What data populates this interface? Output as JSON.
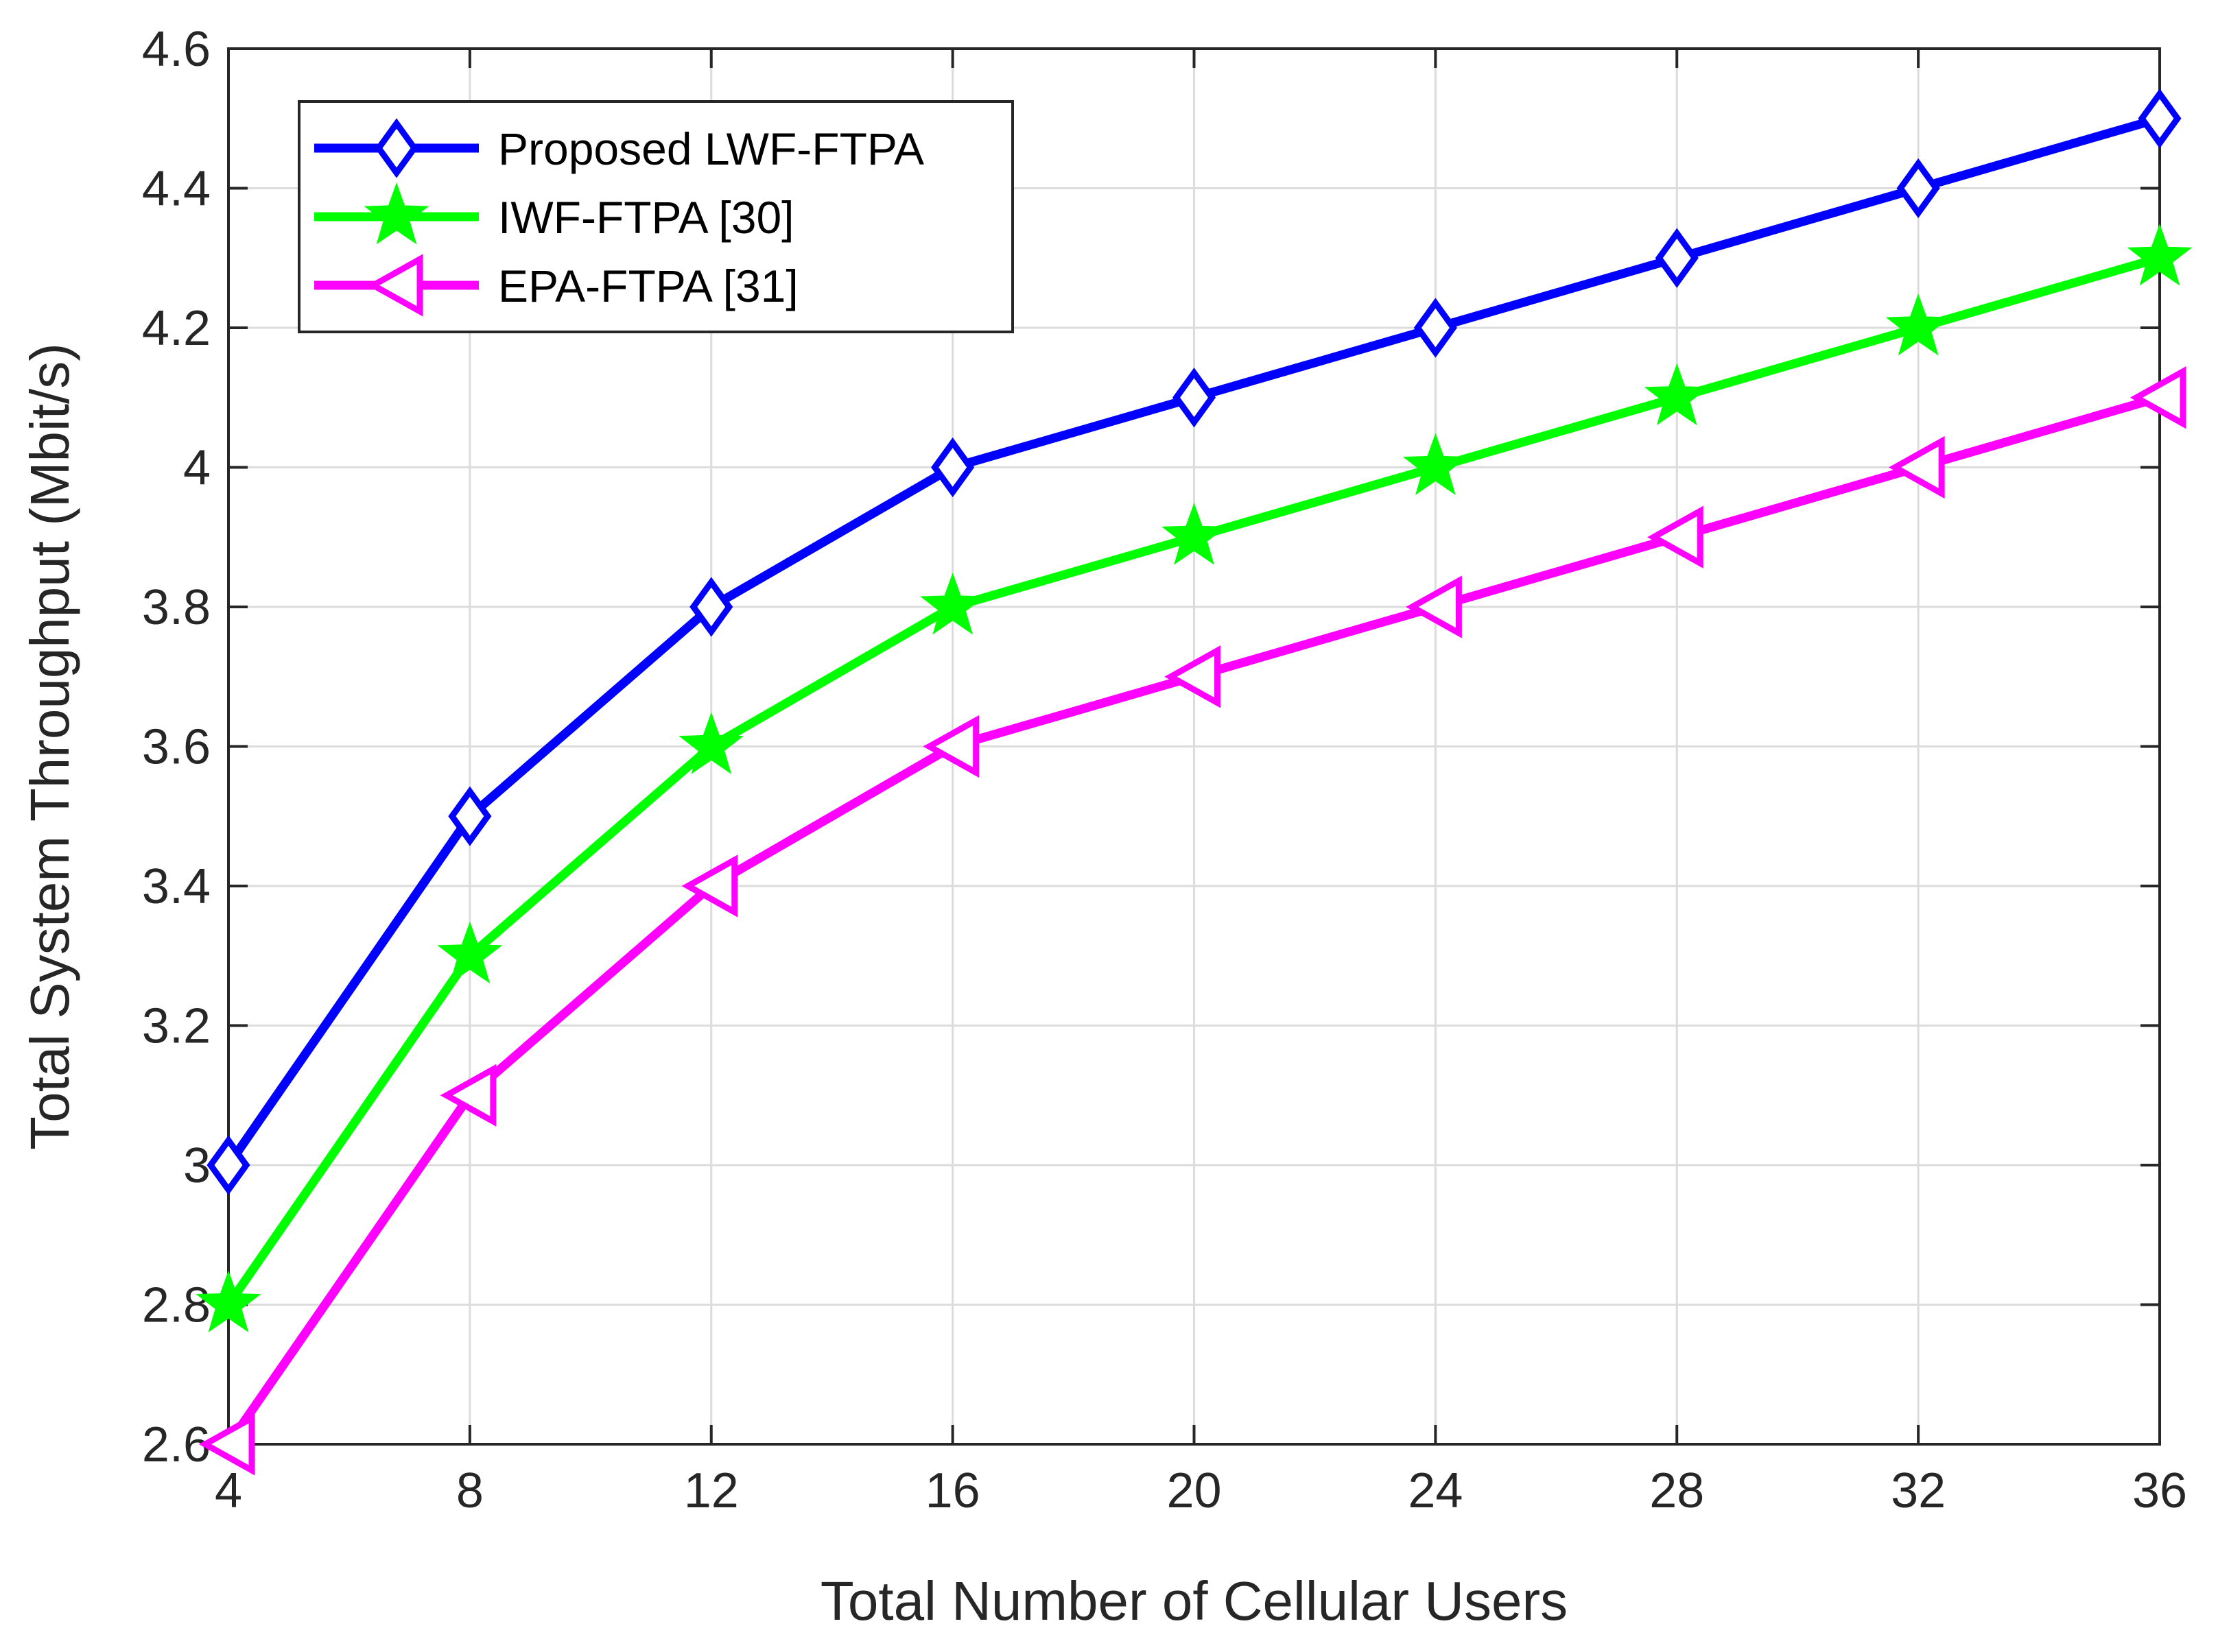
{
  "chart_data": {
    "type": "line",
    "title": "",
    "xlabel": "Total Number of Cellular Users",
    "ylabel": "Total System Throughput (Mbit/s)",
    "x": [
      4,
      8,
      12,
      16,
      20,
      24,
      28,
      32,
      36
    ],
    "xlim": [
      4,
      36
    ],
    "ylim": [
      2.6,
      4.6
    ],
    "xticks": [
      4,
      8,
      12,
      16,
      20,
      24,
      28,
      32,
      36
    ],
    "xtick_labels": [
      "4",
      "8",
      "12",
      "16",
      "20",
      "24",
      "28",
      "32",
      "36"
    ],
    "yticks": [
      2.6,
      2.8,
      3.0,
      3.2,
      3.4,
      3.6,
      3.8,
      4.0,
      4.2,
      4.4,
      4.6
    ],
    "ytick_labels": [
      "2.6",
      "2.8",
      "3",
      "3.2",
      "3.4",
      "3.6",
      "3.8",
      "4",
      "4.2",
      "4.4",
      "4.6"
    ],
    "grid": true,
    "legend_position": "top-left",
    "series": [
      {
        "name": "Proposed LWF-FTPA",
        "color": "#0000ff",
        "marker": "diamond",
        "values": [
          3.0,
          3.5,
          3.8,
          4.0,
          4.1,
          4.2,
          4.3,
          4.4,
          4.5
        ]
      },
      {
        "name": "IWF-FTPA [30]",
        "color": "#00ff00",
        "marker": "star",
        "values": [
          2.8,
          3.3,
          3.6,
          3.8,
          3.9,
          4.0,
          4.1,
          4.2,
          4.3
        ]
      },
      {
        "name": "EPA-FTPA [31]",
        "color": "#ff00ff",
        "marker": "triangle-left",
        "values": [
          2.6,
          3.1,
          3.4,
          3.6,
          3.7,
          3.8,
          3.9,
          4.0,
          4.1
        ]
      }
    ]
  }
}
